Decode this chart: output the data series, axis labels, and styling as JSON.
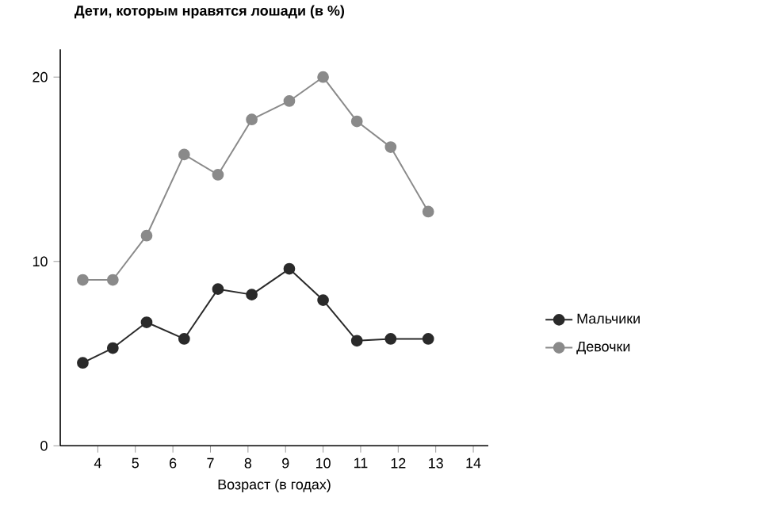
{
  "chart_data": {
    "type": "line",
    "title": "Дети, которым нравятся лошади (в %)",
    "xlabel": "Возраст (в годах)",
    "x": [
      3.6,
      4.4,
      5.3,
      6.3,
      7.2,
      8.1,
      9.1,
      10,
      10.9,
      11.8,
      12.8
    ],
    "series": [
      {
        "name": "Мальчики",
        "color": "#2a2a2a",
        "values": [
          4.5,
          5.3,
          6.7,
          5.8,
          8.5,
          8.2,
          9.6,
          7.9,
          5.7,
          5.8,
          5.8
        ]
      },
      {
        "name": "Девочки",
        "color": "#8a8a8a",
        "values": [
          9.0,
          9.0,
          11.4,
          15.8,
          14.7,
          17.7,
          18.7,
          20,
          17.6,
          16.2,
          12.7
        ]
      }
    ],
    "xlim": [
      3,
      14.4
    ],
    "xticks": [
      4,
      5,
      6,
      7,
      8,
      9,
      10,
      11,
      12,
      13,
      14
    ],
    "ylim": [
      0,
      21.5
    ],
    "yticks": [
      0,
      10,
      20
    ],
    "marker": "circle",
    "legend": "right",
    "grid": false
  }
}
